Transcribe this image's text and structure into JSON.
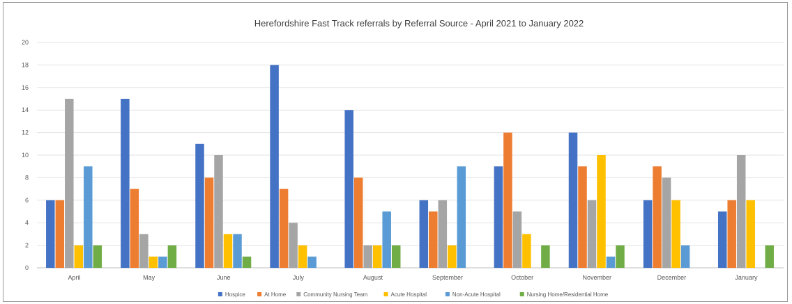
{
  "chart_data": {
    "type": "bar",
    "title": "Herefordshire Fast Track referrals by Referral Source - April 2021 to January 2022",
    "xlabel": "",
    "ylabel": "",
    "ylim": [
      0,
      20
    ],
    "yticks": [
      0,
      2,
      4,
      6,
      8,
      10,
      12,
      14,
      16,
      18,
      20
    ],
    "grid": true,
    "legend_position": "bottom",
    "categories": [
      "April",
      "May",
      "June",
      "July",
      "August",
      "September",
      "October",
      "November",
      "December",
      "January"
    ],
    "series": [
      {
        "name": "Hospice",
        "color": "#4472C4",
        "values": [
          6,
          15,
          11,
          18,
          14,
          6,
          9,
          12,
          6,
          5
        ]
      },
      {
        "name": "At Home",
        "color": "#ED7D31",
        "values": [
          6,
          7,
          8,
          7,
          8,
          5,
          12,
          9,
          9,
          6
        ]
      },
      {
        "name": "Community Nursing Team",
        "color": "#A5A5A5",
        "values": [
          15,
          3,
          10,
          4,
          2,
          6,
          5,
          6,
          8,
          10
        ]
      },
      {
        "name": "Acute Hospital",
        "color": "#FFC000",
        "values": [
          2,
          1,
          3,
          2,
          2,
          2,
          3,
          10,
          6,
          6
        ]
      },
      {
        "name": "Non-Acute Hospital",
        "color": "#5B9BD5",
        "values": [
          9,
          1,
          3,
          1,
          5,
          9,
          0,
          1,
          2,
          0
        ]
      },
      {
        "name": "Nursing Home/Residential Home",
        "color": "#70AD47",
        "values": [
          2,
          2,
          1,
          0,
          2,
          0,
          2,
          2,
          0,
          2
        ]
      }
    ]
  }
}
